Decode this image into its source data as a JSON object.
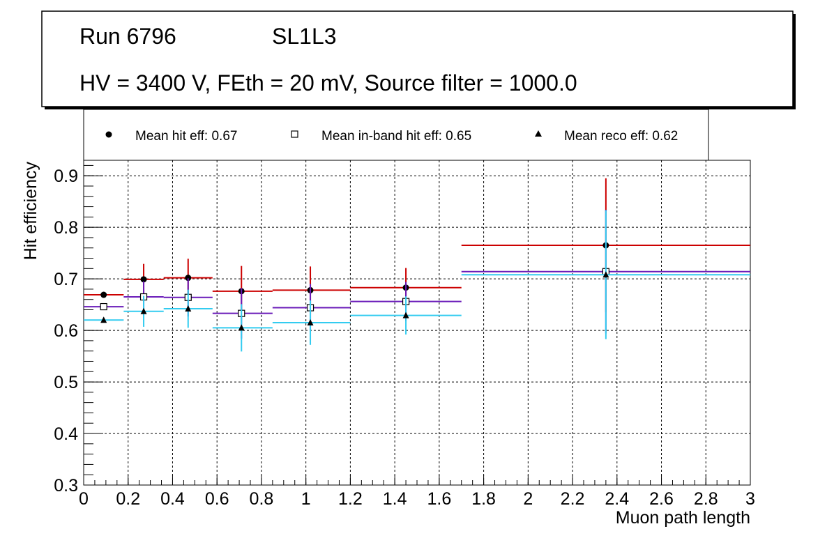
{
  "header": {
    "run_label": "Run 6796",
    "layer_label": "SL1L3",
    "settings": "HV = 3400 V, FEth = 20 mV, Source filter = 1000.0"
  },
  "chart_data": {
    "type": "scatter",
    "title": "Run 6796 SL1L3",
    "xlabel": "Muon path length",
    "ylabel": "Hit efficiency",
    "xlim": [
      0,
      3
    ],
    "ylim": [
      0.3,
      0.93
    ],
    "x_ticks": [
      "0",
      "0.2",
      "0.4",
      "0.6",
      "0.8",
      "1",
      "1.2",
      "1.4",
      "1.6",
      "1.8",
      "2",
      "2.2",
      "2.4",
      "2.6",
      "2.8",
      "3"
    ],
    "y_ticks": [
      "0.3",
      "0.4",
      "0.5",
      "0.6",
      "0.7",
      "0.8",
      "0.9"
    ],
    "grid": true,
    "legend_position": "top",
    "series": [
      {
        "name": "Mean hit  eff: 0.67",
        "marker": "circle",
        "color": "#cc0000",
        "x": [
          0.09,
          0.27,
          0.47,
          0.71,
          1.02,
          1.45,
          2.35
        ],
        "x_low": [
          0.0,
          0.18,
          0.36,
          0.58,
          0.85,
          1.2,
          1.7
        ],
        "x_high": [
          0.18,
          0.36,
          0.58,
          0.85,
          1.2,
          1.7,
          3.0
        ],
        "values": [
          0.669,
          0.699,
          0.702,
          0.676,
          0.678,
          0.683,
          0.765
        ],
        "err": [
          0.005,
          0.03,
          0.037,
          0.049,
          0.046,
          0.038,
          0.13
        ]
      },
      {
        "name": "Mean in-band hit eff: 0.65",
        "marker": "open-square",
        "color": "#6a1bb9",
        "x": [
          0.09,
          0.27,
          0.47,
          0.71,
          1.02,
          1.45,
          2.35
        ],
        "x_low": [
          0.0,
          0.18,
          0.36,
          0.58,
          0.85,
          1.2,
          1.7
        ],
        "x_high": [
          0.18,
          0.36,
          0.58,
          0.85,
          1.2,
          1.7,
          3.0
        ],
        "values": [
          0.646,
          0.665,
          0.664,
          0.633,
          0.644,
          0.656,
          0.714
        ],
        "err": [
          0.005,
          0.03,
          0.037,
          0.049,
          0.046,
          0.038,
          0.12
        ]
      },
      {
        "name": "Mean reco eff: 0.62",
        "marker": "triangle",
        "color": "#33ccf0",
        "x": [
          0.09,
          0.27,
          0.47,
          0.71,
          1.02,
          1.45,
          2.35
        ],
        "x_low": [
          0.0,
          0.18,
          0.36,
          0.58,
          0.85,
          1.2,
          1.7
        ],
        "x_high": [
          0.18,
          0.36,
          0.58,
          0.85,
          1.2,
          1.7,
          3.0
        ],
        "values": [
          0.62,
          0.637,
          0.642,
          0.605,
          0.615,
          0.629,
          0.708
        ],
        "err": [
          0.005,
          0.03,
          0.037,
          0.046,
          0.043,
          0.037,
          0.125
        ]
      }
    ]
  }
}
